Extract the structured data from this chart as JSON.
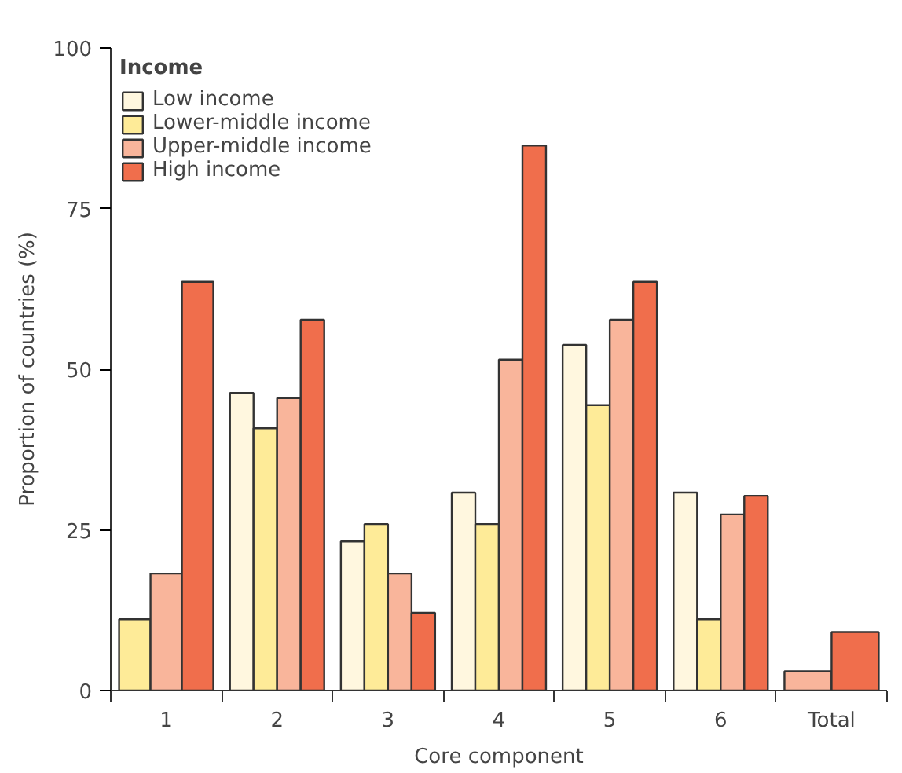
{
  "chart_data": {
    "type": "bar",
    "xlabel": "Core component",
    "ylabel": "Proportion of countries (%)",
    "legend_title": "Income",
    "categories": [
      "1",
      "2",
      "3",
      "4",
      "5",
      "6",
      "Total"
    ],
    "series": [
      {
        "name": "Low income",
        "color": "#fff7df",
        "values": [
          null,
          46.3,
          23.2,
          30.8,
          53.8,
          30.8,
          null
        ]
      },
      {
        "name": "Lower-middle income",
        "color": "#feeb98",
        "values": [
          11.1,
          40.8,
          25.9,
          25.9,
          44.4,
          11.1,
          null
        ]
      },
      {
        "name": "Upper-middle income",
        "color": "#f9b59b",
        "values": [
          18.2,
          45.5,
          18.2,
          51.5,
          57.7,
          27.4,
          3.0
        ]
      },
      {
        "name": "High income",
        "color": "#f06e4c",
        "values": [
          63.6,
          57.7,
          12.1,
          84.8,
          63.6,
          30.3,
          9.1
        ]
      }
    ],
    "ylim": [
      0,
      100
    ],
    "yticks": [
      0,
      25,
      50,
      75,
      100
    ],
    "grid": false,
    "legend": "top left"
  }
}
